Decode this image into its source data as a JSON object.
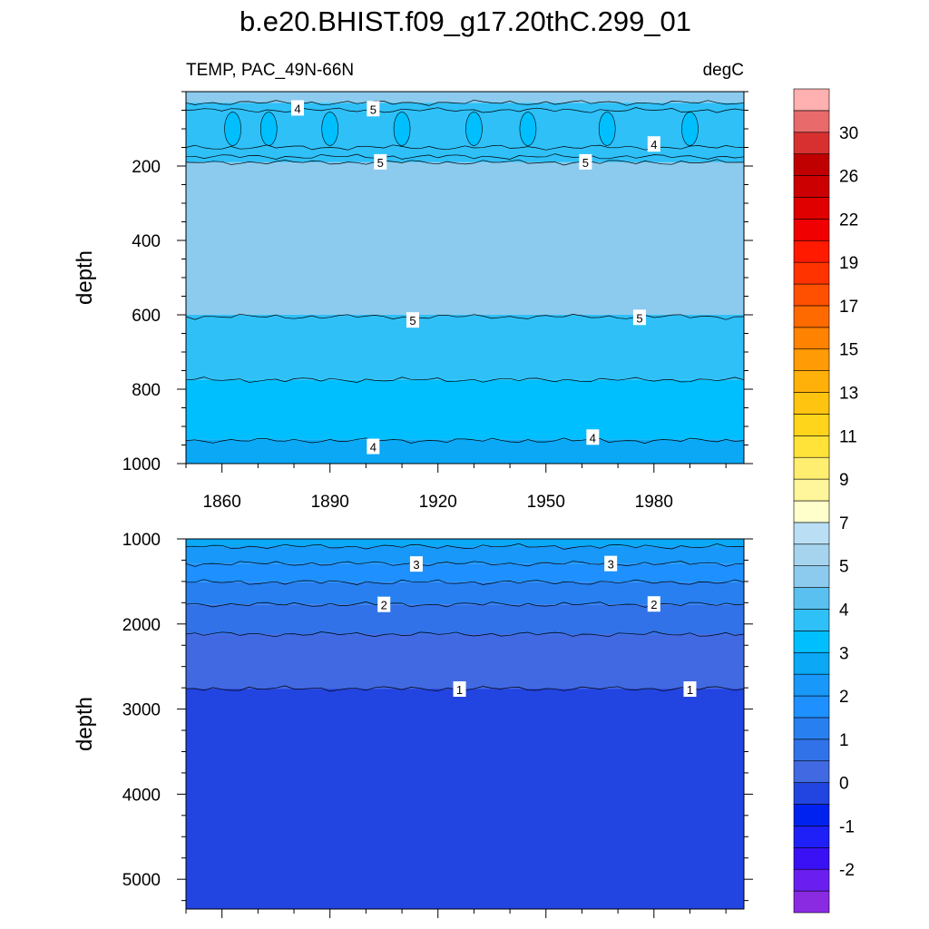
{
  "chart_data": [
    {
      "type": "heatmap",
      "panel": "upper",
      "title": "b.e20.BHIST.f09_g17.20thC.299_01",
      "subtitle_left": "TEMP, PAC_49N-66N",
      "subtitle_right": "degC",
      "ylabel": "depth",
      "xlim": [
        1850,
        2005
      ],
      "ylim": [
        0,
        1000
      ],
      "y_inverted": true,
      "x_ticks": [
        1860,
        1890,
        1920,
        1950,
        1980
      ],
      "x_tick_labels": [
        "1860",
        "1890",
        "1920",
        "1950",
        "1980"
      ],
      "y_ticks": [
        200,
        400,
        600,
        800,
        1000
      ],
      "y_tick_labels": [
        "200",
        "400",
        "600",
        "800",
        "1000"
      ],
      "fill_bands": [
        {
          "depth_top": 0,
          "depth_bottom": 30,
          "value": 5.5
        },
        {
          "depth_top": 30,
          "depth_bottom": 190,
          "value": 4.5
        },
        {
          "depth_top": 190,
          "depth_bottom": 600,
          "value": 5.5
        },
        {
          "depth_top": 600,
          "depth_bottom": 775,
          "value": 4.8
        },
        {
          "depth_top": 775,
          "depth_bottom": 935,
          "value": 4.3
        },
        {
          "depth_top": 935,
          "depth_bottom": 1000,
          "value": 3.8
        }
      ],
      "contours": [
        {
          "level": 5,
          "depth": 30
        },
        {
          "level": 4.5,
          "depth": 50
        },
        {
          "level": 4,
          "depth": 150
        },
        {
          "level": 4.5,
          "depth": 175
        },
        {
          "level": 5,
          "depth": 190
        },
        {
          "level": 5,
          "depth": 605
        },
        {
          "level": 4.5,
          "depth": 775
        },
        {
          "level": 4,
          "depth": 938
        }
      ],
      "contour_labels": [
        {
          "text": "4",
          "x": 1881,
          "depth": 45
        },
        {
          "text": "5",
          "x": 1902,
          "depth": 47
        },
        {
          "text": "5",
          "x": 1904,
          "depth": 190
        },
        {
          "text": "5",
          "x": 1961,
          "depth": 190
        },
        {
          "text": "4",
          "x": 1980,
          "depth": 142
        },
        {
          "text": "5",
          "x": 1913,
          "depth": 615
        },
        {
          "text": "5",
          "x": 1976,
          "depth": 608
        },
        {
          "text": "4",
          "x": 1902,
          "depth": 955
        },
        {
          "text": "4",
          "x": 1963,
          "depth": 930
        }
      ],
      "cold_cores": [
        1863,
        1873,
        1890,
        1910,
        1930,
        1945,
        1967,
        1990
      ]
    },
    {
      "type": "heatmap",
      "panel": "lower",
      "ylabel": "depth",
      "xlim": [
        1850,
        2005
      ],
      "ylim": [
        1000,
        5350
      ],
      "y_inverted": true,
      "y_ticks": [
        1000,
        2000,
        3000,
        4000,
        5000
      ],
      "y_tick_labels": [
        "1000",
        "2000",
        "3000",
        "4000",
        "5000"
      ],
      "fill_bands": [
        {
          "depth_top": 1000,
          "depth_bottom": 1090,
          "value": 3.8
        },
        {
          "depth_top": 1090,
          "depth_bottom": 1290,
          "value": 3.3
        },
        {
          "depth_top": 1290,
          "depth_bottom": 1510,
          "value": 2.8
        },
        {
          "depth_top": 1510,
          "depth_bottom": 1770,
          "value": 2.3
        },
        {
          "depth_top": 1770,
          "depth_bottom": 2120,
          "value": 1.8
        },
        {
          "depth_top": 2120,
          "depth_bottom": 2760,
          "value": 1.3
        },
        {
          "depth_top": 2760,
          "depth_bottom": 5350,
          "value": 0.8
        }
      ],
      "contours": [
        {
          "level": 3.5,
          "depth": 1090
        },
        {
          "level": 3,
          "depth": 1290
        },
        {
          "level": 2.5,
          "depth": 1510
        },
        {
          "level": 2,
          "depth": 1770
        },
        {
          "level": 1.5,
          "depth": 2120
        },
        {
          "level": 1,
          "depth": 2760
        }
      ],
      "contour_labels": [
        {
          "text": "3",
          "x": 1914,
          "depth": 1300
        },
        {
          "text": "3",
          "x": 1968,
          "depth": 1295
        },
        {
          "text": "2",
          "x": 1905,
          "depth": 1775
        },
        {
          "text": "2",
          "x": 1980,
          "depth": 1770
        },
        {
          "text": "1",
          "x": 1926,
          "depth": 2770
        },
        {
          "text": "1",
          "x": 1990,
          "depth": 2770
        }
      ]
    }
  ],
  "colorbar": {
    "boxes": [
      {
        "value": -3,
        "color": "#8a2be2"
      },
      {
        "value": -2,
        "color": "#6a1ff0"
      },
      {
        "value": -1,
        "color": "#3a10f5"
      },
      {
        "value": -0.5,
        "color": "#1f1ff8"
      },
      {
        "value": 0,
        "color": "#0022f0"
      },
      {
        "value": 0.5,
        "color": "#2244e0"
      },
      {
        "value": 1,
        "color": "#4169e1"
      },
      {
        "value": 1.5,
        "color": "#3272e8"
      },
      {
        "value": 2,
        "color": "#2880f0"
      },
      {
        "value": 2.5,
        "color": "#1e90ff"
      },
      {
        "value": 3,
        "color": "#1898f8"
      },
      {
        "value": 3.5,
        "color": "#0aa8f5"
      },
      {
        "value": 4,
        "color": "#00bfff"
      },
      {
        "value": 4.5,
        "color": "#2fc0f8"
      },
      {
        "value": 5,
        "color": "#5ac0f0"
      },
      {
        "value": 5.5,
        "color": "#8ccbee"
      },
      {
        "value": 6,
        "color": "#a6d4ef"
      },
      {
        "value": 7,
        "color": "#badff4"
      },
      {
        "value": 8,
        "color": "#ffffcc"
      },
      {
        "value": 9,
        "color": "#fff59a"
      },
      {
        "value": 10,
        "color": "#ffee70"
      },
      {
        "value": 11,
        "color": "#ffe339"
      },
      {
        "value": 12,
        "color": "#ffd51c"
      },
      {
        "value": 13,
        "color": "#ffc40f"
      },
      {
        "value": 14,
        "color": "#ffb10a"
      },
      {
        "value": 15,
        "color": "#ff9b05"
      },
      {
        "value": 16,
        "color": "#ff8200"
      },
      {
        "value": 17,
        "color": "#ff6a00"
      },
      {
        "value": 18,
        "color": "#ff4f00"
      },
      {
        "value": 19,
        "color": "#ff3300"
      },
      {
        "value": 20,
        "color": "#ff1a00"
      },
      {
        "value": 22,
        "color": "#f00000"
      },
      {
        "value": 24,
        "color": "#e00000"
      },
      {
        "value": 26,
        "color": "#cc0000"
      },
      {
        "value": 28,
        "color": "#c00000"
      },
      {
        "value": 30,
        "color": "#d83030"
      },
      {
        "value": 32,
        "color": "#e86a6a"
      },
      {
        "value": 34,
        "color": "#ffb0b0"
      }
    ],
    "labels": [
      {
        "text": "30",
        "index": 35
      },
      {
        "text": "26",
        "index": 33
      },
      {
        "text": "22",
        "index": 31
      },
      {
        "text": "19",
        "index": 29
      },
      {
        "text": "17",
        "index": 27
      },
      {
        "text": "15",
        "index": 25
      },
      {
        "text": "13",
        "index": 23
      },
      {
        "text": "11",
        "index": 21
      },
      {
        "text": "9",
        "index": 19
      },
      {
        "text": "7",
        "index": 17
      },
      {
        "text": "5",
        "index": 15
      },
      {
        "text": "4",
        "index": 13
      },
      {
        "text": "3",
        "index": 11
      },
      {
        "text": "2",
        "index": 9
      },
      {
        "text": "1",
        "index": 7
      },
      {
        "text": "0",
        "index": 5
      },
      {
        "text": "-1",
        "index": 3
      },
      {
        "text": "-2",
        "index": 1
      }
    ]
  }
}
